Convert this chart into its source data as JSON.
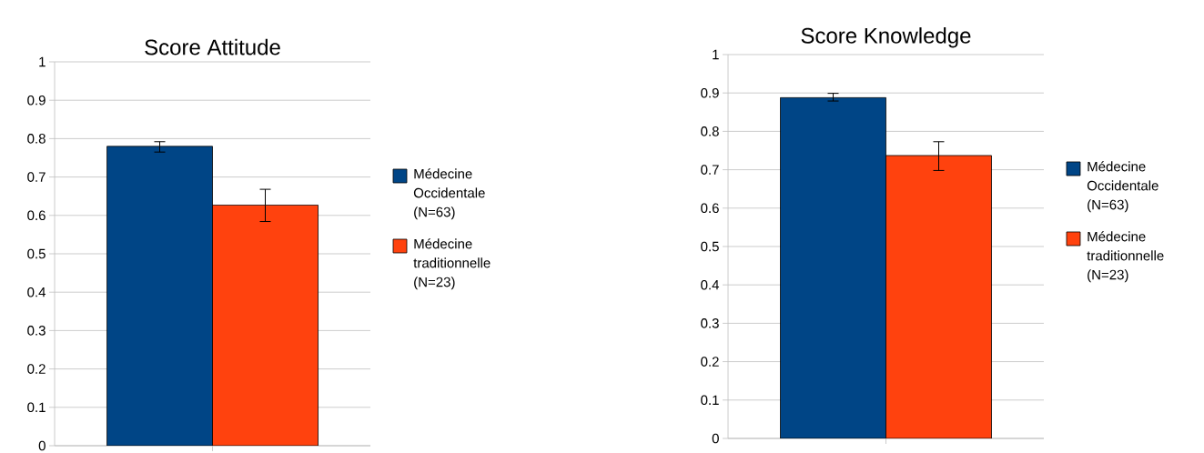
{
  "chart_data": [
    {
      "type": "bar",
      "title": "Score Attitude",
      "categories": [
        null
      ],
      "ylim": [
        0,
        1
      ],
      "yticks": [
        0,
        0.1,
        0.2,
        0.3,
        0.4,
        0.5,
        0.6,
        0.7,
        0.8,
        0.9,
        1
      ],
      "grid": "y",
      "legend": "right",
      "series": [
        {
          "name": "Médecine Occidentale (N=63)",
          "color": "#004586",
          "values": [
            0.78
          ],
          "errors": [
            [
              0.765,
              0.792
            ]
          ]
        },
        {
          "name": "Médecine traditionnelle (N=23)",
          "color": "#ff420e",
          "values": [
            0.627
          ],
          "errors": [
            [
              0.584,
              0.668
            ]
          ]
        }
      ]
    },
    {
      "type": "bar",
      "title": "Score Knowledge",
      "categories": [
        null
      ],
      "ylim": [
        0,
        1
      ],
      "yticks": [
        0,
        0.1,
        0.2,
        0.3,
        0.4,
        0.5,
        0.6,
        0.7,
        0.8,
        0.9,
        1
      ],
      "grid": "y",
      "legend": "right",
      "series": [
        {
          "name": "Médecine Occidentale (N=63)",
          "color": "#004586",
          "values": [
            0.888
          ],
          "errors": [
            [
              0.879,
              0.899
            ]
          ]
        },
        {
          "name": "Médecine traditionnelle (N=23)",
          "color": "#ff420e",
          "values": [
            0.737
          ],
          "errors": [
            [
              0.698,
              0.773
            ]
          ]
        }
      ]
    }
  ]
}
